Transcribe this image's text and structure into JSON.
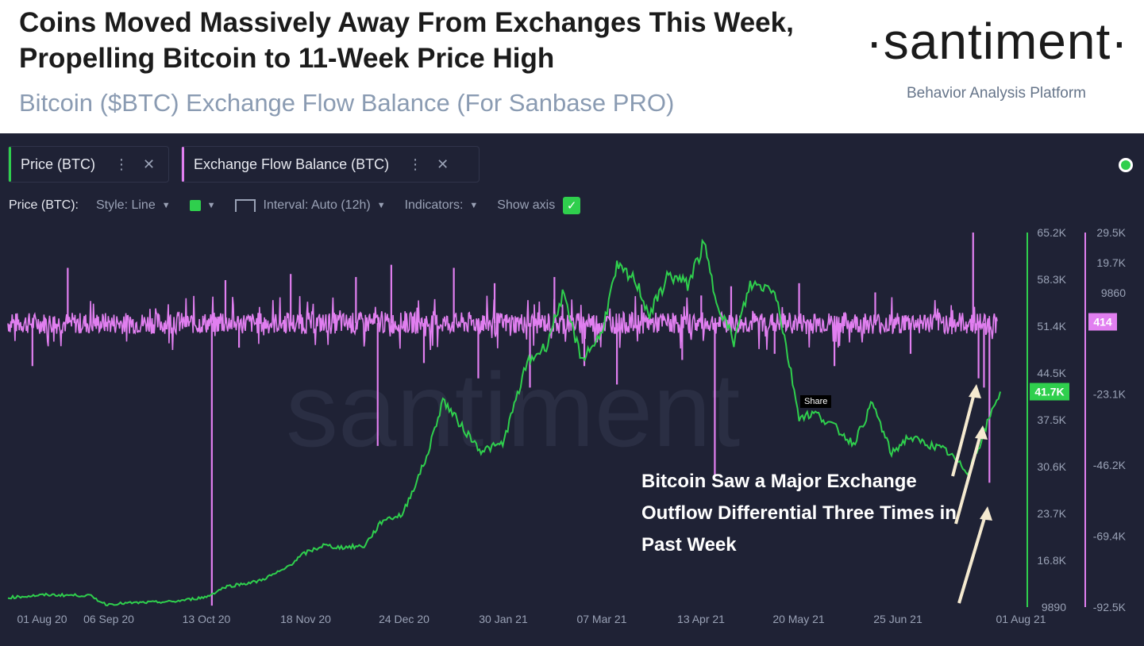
{
  "header": {
    "title": "Coins Moved Massively Away From Exchanges This Week, Propelling Bitcoin to 11-Week Price High",
    "subtitle": "Bitcoin ($BTC) Exchange Flow Balance (For Sanbase PRO)",
    "logo": "·santiment·",
    "tagline": "Behavior Analysis Platform"
  },
  "metrics": [
    {
      "label": "Price (BTC)",
      "color": "#2fcf4d"
    },
    {
      "label": "Exchange Flow Balance (BTC)",
      "color": "#e17ff0"
    }
  ],
  "toolbar": {
    "label": "Price (BTC):",
    "style": "Style: Line",
    "interval": "Interval: Auto (12h)",
    "indicators": "Indicators:",
    "show_axis": "Show axis"
  },
  "share_label": "Share",
  "watermark": "santiment",
  "annotation": "Bitcoin Saw a Major Exchange Outflow Differential Three Times in Past Week",
  "chart_data": {
    "type": "line",
    "title": "Bitcoin ($BTC) Exchange Flow Balance (For Sanbase PRO)",
    "x_ticks": [
      "01 Aug 20",
      "06 Sep 20",
      "13 Oct 20",
      "18 Nov 20",
      "24 Dec 20",
      "30 Jan 21",
      "07 Mar 21",
      "13 Apr 21",
      "20 May 21",
      "25 Jun 21",
      "01 Aug 21"
    ],
    "price_axis": {
      "ticks": [
        "65.2K",
        "58.3K",
        "51.4K",
        "44.5K",
        "37.5K",
        "30.6K",
        "23.7K",
        "16.8K",
        "9890"
      ],
      "ylim": [
        9890,
        65200
      ],
      "last_value_label": "41.7K",
      "last_value": 41700
    },
    "flow_axis": {
      "ticks": [
        "29.5K",
        "19.7K",
        "9860",
        "-23.1K",
        "-46.2K",
        "-69.4K",
        "-92.5K"
      ],
      "ylim": [
        -92500,
        29500
      ],
      "last_value_label": "414",
      "last_value": 414
    },
    "series": [
      {
        "name": "Price (BTC)",
        "color": "#2fcf4d",
        "x": [
          "2020-08-01",
          "2020-08-15",
          "2020-08-31",
          "2020-09-06",
          "2020-09-15",
          "2020-10-01",
          "2020-10-13",
          "2020-10-20",
          "2020-11-01",
          "2020-11-10",
          "2020-11-18",
          "2020-11-25",
          "2020-12-01",
          "2020-12-10",
          "2020-12-17",
          "2020-12-24",
          "2021-01-02",
          "2021-01-08",
          "2021-01-15",
          "2021-01-22",
          "2021-01-30",
          "2021-02-08",
          "2021-02-15",
          "2021-02-21",
          "2021-02-28",
          "2021-03-07",
          "2021-03-13",
          "2021-03-20",
          "2021-03-25",
          "2021-04-01",
          "2021-04-08",
          "2021-04-14",
          "2021-04-18",
          "2021-04-25",
          "2021-05-01",
          "2021-05-10",
          "2021-05-13",
          "2021-05-19",
          "2021-05-25",
          "2021-06-01",
          "2021-06-08",
          "2021-06-15",
          "2021-06-22",
          "2021-06-28",
          "2021-07-05",
          "2021-07-12",
          "2021-07-20",
          "2021-07-25",
          "2021-07-30",
          "2021-08-01"
        ],
        "values": [
          11300,
          11700,
          11600,
          10300,
          10500,
          10700,
          11400,
          12900,
          13700,
          15300,
          17800,
          19000,
          18700,
          18900,
          22800,
          23500,
          32000,
          40500,
          36500,
          33000,
          34000,
          46000,
          48500,
          56000,
          46500,
          50000,
          60000,
          58000,
          53000,
          59000,
          57500,
          63500,
          56000,
          49000,
          57500,
          57000,
          51000,
          38000,
          38500,
          36500,
          34000,
          40000,
          32500,
          35000,
          34000,
          33000,
          29800,
          34500,
          40000,
          41700
        ]
      },
      {
        "name": "Exchange Flow Balance (BTC)",
        "color": "#e17ff0",
        "baseline": 0,
        "spikes": [
          {
            "date": "2020-08-10",
            "value": -14000
          },
          {
            "date": "2020-08-23",
            "value": 18000
          },
          {
            "date": "2020-10-15",
            "value": -92000
          },
          {
            "date": "2020-10-20",
            "value": 14000
          },
          {
            "date": "2020-10-25",
            "value": -8000
          },
          {
            "date": "2020-11-13",
            "value": 16000
          },
          {
            "date": "2020-12-07",
            "value": 15000
          },
          {
            "date": "2020-12-15",
            "value": -40000
          },
          {
            "date": "2020-12-20",
            "value": 19000
          },
          {
            "date": "2021-01-01",
            "value": -13000
          },
          {
            "date": "2021-01-12",
            "value": 18000
          },
          {
            "date": "2021-01-21",
            "value": -18000
          },
          {
            "date": "2021-01-27",
            "value": 13000
          },
          {
            "date": "2021-02-09",
            "value": -21000
          },
          {
            "date": "2021-02-18",
            "value": 15000
          },
          {
            "date": "2021-03-01",
            "value": -14000
          },
          {
            "date": "2021-03-13",
            "value": -20000
          },
          {
            "date": "2021-04-06",
            "value": -12000
          },
          {
            "date": "2021-04-13",
            "value": 9000
          },
          {
            "date": "2021-04-18",
            "value": -50000
          },
          {
            "date": "2021-04-24",
            "value": 12000
          },
          {
            "date": "2021-05-10",
            "value": -10000
          },
          {
            "date": "2021-05-19",
            "value": 13000
          },
          {
            "date": "2021-06-01",
            "value": -14000
          },
          {
            "date": "2021-06-16",
            "value": 10000
          },
          {
            "date": "2021-06-29",
            "value": -10000
          },
          {
            "date": "2021-07-22",
            "value": 29500
          },
          {
            "date": "2021-07-24",
            "value": -18000
          },
          {
            "date": "2021-07-26",
            "value": -21000
          },
          {
            "date": "2021-07-28",
            "value": -52000
          }
        ]
      }
    ],
    "legend": "top-left",
    "grid": false
  }
}
